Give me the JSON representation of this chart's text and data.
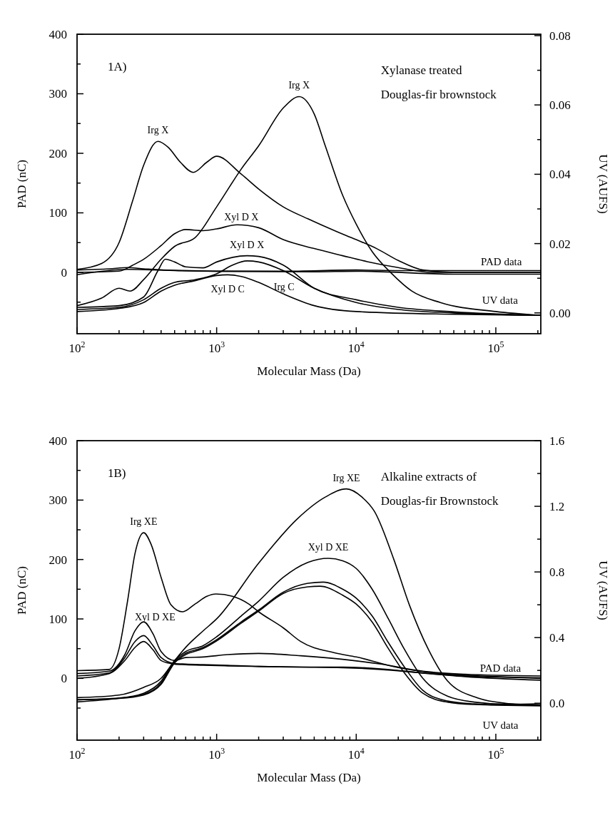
{
  "chart_data": [
    {
      "type": "line",
      "xlabel": "Molecular Mass (Da)",
      "ylabel": "PAD (nC)",
      "y2label": "UV (AUFS)",
      "log": "x",
      "xlim": [
        100,
        210000
      ],
      "ylim": [
        -103,
        400
      ],
      "y2lim": [
        -0.006,
        0.0804
      ],
      "xticks": [
        {
          "value": 100,
          "label": "10$^{2}$"
        },
        {
          "value": 200,
          "label": null
        },
        {
          "value": 300,
          "label": null
        },
        {
          "value": 400,
          "label": null
        },
        {
          "value": 500,
          "label": null
        },
        {
          "value": 600,
          "label": null
        },
        {
          "value": 700,
          "label": null
        },
        {
          "value": 800,
          "label": null
        },
        {
          "value": 900,
          "label": null
        },
        {
          "value": 1000,
          "label": "10$^{3}$"
        },
        {
          "value": 2000,
          "label": null
        },
        {
          "value": 3000,
          "label": null
        },
        {
          "value": 4000,
          "label": null
        },
        {
          "value": 5000,
          "label": null
        },
        {
          "value": 6000,
          "label": null
        },
        {
          "value": 7000,
          "label": null
        },
        {
          "value": 8000,
          "label": null
        },
        {
          "value": 9000,
          "label": null
        },
        {
          "value": 10000,
          "label": "10$^{4}$"
        },
        {
          "value": 20000,
          "label": null
        },
        {
          "value": 30000,
          "label": null
        },
        {
          "value": 40000,
          "label": null
        },
        {
          "value": 50000,
          "label": null
        },
        {
          "value": 60000,
          "label": null
        },
        {
          "value": 70000,
          "label": null
        },
        {
          "value": 80000,
          "label": null
        },
        {
          "value": 90000,
          "label": null
        },
        {
          "value": 100000,
          "label": "10$^{5}$"
        },
        {
          "value": 200000,
          "label": null
        }
      ],
      "yticks": [
        {
          "value": -50,
          "label": null
        },
        0,
        {
          "value": 50,
          "label": null
        },
        100,
        {
          "value": 150,
          "label": null
        },
        200,
        {
          "value": 250,
          "label": null
        },
        300,
        {
          "value": 350,
          "label": null
        },
        400
      ],
      "y2ticks": [
        {
          "value": 0,
          "label": "0.00"
        },
        {
          "value": 0.01,
          "label": null
        },
        0.02,
        {
          "value": 0.03,
          "label": null
        },
        0.04,
        {
          "value": 0.05,
          "label": null
        },
        0.06,
        {
          "value": 0.07,
          "label": null
        },
        0.08
      ],
      "series": [
        {
          "name": "Irg X",
          "color": "#000000",
          "x": [
            100,
            150,
            200,
            250,
            300,
            380,
            450,
            550,
            680,
            850,
            1000,
            1500,
            2000,
            3000,
            4500,
            7000,
            10000,
            14000,
            20000,
            30000,
            50000,
            210000
          ],
          "values": [
            5,
            15,
            50,
            120,
            180,
            220,
            210,
            185,
            168,
            185,
            195,
            165,
            140,
            110,
            90,
            70,
            55,
            40,
            20,
            4,
            0,
            0
          ]
        },
        {
          "name": "Xyl D X",
          "color": "#000000",
          "x": [
            100,
            200,
            250,
            300,
            400,
            500,
            600,
            800,
            1000,
            1400,
            2000,
            3000,
            5000,
            8000,
            12000,
            20000,
            35000,
            210000
          ],
          "values": [
            0,
            2,
            12,
            22,
            45,
            65,
            72,
            70,
            73,
            80,
            75,
            55,
            40,
            28,
            18,
            8,
            0,
            0
          ]
        },
        {
          "color": "#000000",
          "x": [
            100,
            170,
            230,
            300,
            500,
            1000,
            3000,
            10000,
            20000,
            50000,
            210000
          ],
          "values": [
            4,
            6,
            8,
            6,
            3,
            2,
            2,
            4,
            3,
            3,
            3
          ]
        },
        {
          "color": "#000000",
          "x": [
            100,
            230,
            400,
            1000,
            5000,
            10000,
            50000,
            210000
          ],
          "values": [
            -4,
            5,
            4,
            2,
            1,
            2,
            -3,
            -3
          ]
        },
        {
          "name": "Irg X",
          "color": "#000000",
          "axis": "y2",
          "x": [
            100,
            150,
            200,
            240,
            300,
            400,
            500,
            700,
            1000,
            1500,
            2000,
            3000,
            3900,
            5000,
            6000,
            8000,
            10000,
            13000,
            18000,
            25000,
            40000,
            100000,
            210000
          ],
          "values": [
            0.0021,
            0.0043,
            0.0071,
            0.0063,
            0.0096,
            0.0155,
            0.0192,
            0.0217,
            0.0306,
            0.0415,
            0.0482,
            0.0591,
            0.0624,
            0.0574,
            0.0482,
            0.0339,
            0.0256,
            0.0177,
            0.0113,
            0.0063,
            0.003,
            0.0004,
            -0.0007
          ]
        },
        {
          "name": "Xyl D X",
          "color": "#000000",
          "axis": "y2",
          "x": [
            100,
            200,
            300,
            380,
            430,
            500,
            600,
            800,
            1000,
            1650,
            2000,
            3000,
            5000,
            10000,
            20000,
            50000,
            210000
          ],
          "values": [
            0.0016,
            0.0021,
            0.0046,
            0.0122,
            0.0155,
            0.0147,
            0.0133,
            0.013,
            0.0147,
            0.0165,
            0.0163,
            0.0138,
            0.0071,
            0.0038,
            0.0016,
            0.0003,
            -0.0007
          ]
        },
        {
          "name": "Irg C",
          "color": "#000000",
          "axis": "y2",
          "x": [
            100,
            200,
            300,
            400,
            500,
            700,
            1000,
            1300,
            1650,
            2000,
            3000,
            5000,
            10000,
            20000,
            50000,
            210000
          ],
          "values": [
            0.001,
            0.0016,
            0.0038,
            0.0071,
            0.0088,
            0.0096,
            0.0113,
            0.0138,
            0.015,
            0.0147,
            0.0122,
            0.0071,
            0.003,
            0.001,
            0,
            -0.0007
          ]
        },
        {
          "name": "Xyl D C",
          "color": "#000000",
          "axis": "y2",
          "x": [
            100,
            200,
            300,
            400,
            500,
            700,
            1000,
            1200,
            1500,
            2000,
            3000,
            5000,
            10000,
            50000,
            210000
          ],
          "values": [
            0.0004,
            0.0013,
            0.003,
            0.0063,
            0.008,
            0.0093,
            0.0108,
            0.011,
            0.0105,
            0.0088,
            0.0055,
            0.0021,
            0.0004,
            -0.0004,
            -0.0007
          ]
        }
      ],
      "annotations": [
        "1A)",
        "Xylanase treated",
        "Douglas-fir brownstock",
        "PAD data",
        "UV data"
      ]
    },
    {
      "type": "line",
      "xlabel": "Molecular Mass (Da)",
      "ylabel": "PAD (nC)",
      "y2label": "UV (AUFS)",
      "log": "x",
      "xlim": [
        100,
        210000
      ],
      "ylim": [
        -104,
        400
      ],
      "y2lim": [
        -0.225,
        1.6
      ],
      "xticks": [
        {
          "value": 100,
          "label": "10$^{2}$"
        },
        {
          "value": 200,
          "label": null
        },
        {
          "value": 300,
          "label": null
        },
        {
          "value": 400,
          "label": null
        },
        {
          "value": 500,
          "label": null
        },
        {
          "value": 600,
          "label": null
        },
        {
          "value": 700,
          "label": null
        },
        {
          "value": 800,
          "label": null
        },
        {
          "value": 900,
          "label": null
        },
        {
          "value": 1000,
          "label": "10$^{3}$"
        },
        {
          "value": 2000,
          "label": null
        },
        {
          "value": 3000,
          "label": null
        },
        {
          "value": 4000,
          "label": null
        },
        {
          "value": 5000,
          "label": null
        },
        {
          "value": 6000,
          "label": null
        },
        {
          "value": 7000,
          "label": null
        },
        {
          "value": 8000,
          "label": null
        },
        {
          "value": 9000,
          "label": null
        },
        {
          "value": 10000,
          "label": "10$^{4}$"
        },
        {
          "value": 20000,
          "label": null
        },
        {
          "value": 30000,
          "label": null
        },
        {
          "value": 40000,
          "label": null
        },
        {
          "value": 50000,
          "label": null
        },
        {
          "value": 60000,
          "label": null
        },
        {
          "value": 70000,
          "label": null
        },
        {
          "value": 80000,
          "label": null
        },
        {
          "value": 90000,
          "label": null
        },
        {
          "value": 100000,
          "label": "10$^{5}$"
        },
        {
          "value": 200000,
          "label": null
        }
      ],
      "yticks": [
        {
          "value": -50,
          "label": null
        },
        0,
        {
          "value": 50,
          "label": null
        },
        100,
        {
          "value": 150,
          "label": null
        },
        200,
        {
          "value": 250,
          "label": null
        },
        300,
        {
          "value": 350,
          "label": null
        },
        400
      ],
      "y2ticks": [
        {
          "value": 0,
          "label": "0.0"
        },
        {
          "value": 0.2,
          "label": null
        },
        0.4,
        {
          "value": 0.6,
          "label": null
        },
        0.8,
        {
          "value": 1.0,
          "label": null
        },
        1.2,
        {
          "value": 1.4,
          "label": null
        },
        1.6
      ],
      "series": [
        {
          "name": "Irg XE",
          "color": "#000000",
          "x": [
            100,
            170,
            200,
            230,
            260,
            300,
            340,
            400,
            470,
            570,
            700,
            850,
            990,
            1300,
            1700,
            2000,
            3000,
            4000,
            7000,
            10000,
            20000,
            40000,
            100000,
            210000
          ],
          "values": [
            13,
            15,
            50,
            130,
            210,
            245,
            225,
            170,
            124,
            112,
            125,
            138,
            142,
            138,
            125,
            112,
            85,
            62,
            43,
            36,
            18,
            8,
            3,
            0
          ]
        },
        {
          "name": "Xyl D XE",
          "color": "#000000",
          "x": [
            100,
            170,
            220,
            260,
            300,
            350,
            400,
            500,
            600,
            800,
            1200,
            2000,
            4000,
            8000,
            15000,
            30000,
            60000,
            210000
          ],
          "values": [
            8,
            12,
            40,
            80,
            95,
            75,
            45,
            30,
            35,
            36,
            40,
            42,
            38,
            32,
            24,
            12,
            7,
            4
          ]
        },
        {
          "color": "#000000",
          "x": [
            100,
            170,
            220,
            260,
            300,
            350,
            400,
            500,
            600,
            800,
            1200,
            2000,
            4000,
            8000,
            15000,
            30000,
            60000,
            210000
          ],
          "values": [
            4,
            9,
            35,
            62,
            72,
            55,
            35,
            25,
            24,
            23,
            22,
            20,
            19,
            19,
            16,
            9,
            3,
            -3
          ]
        },
        {
          "color": "#000000",
          "x": [
            100,
            170,
            220,
            260,
            300,
            350,
            400,
            500,
            600,
            800,
            1200,
            2000,
            4000,
            8000,
            15000,
            30000,
            60000,
            210000
          ],
          "values": [
            0,
            8,
            30,
            52,
            62,
            48,
            30,
            24,
            23,
            22,
            21,
            20,
            19,
            18,
            15,
            9,
            4,
            1
          ]
        },
        {
          "name": "Irg XE",
          "color": "#000000",
          "axis": "y2",
          "x": [
            100,
            200,
            300,
            400,
            500,
            610,
            800,
            1000,
            2000,
            3800,
            6000,
            8500,
            11000,
            13500,
            18600,
            24000,
            33000,
            45000,
            74000,
            117000,
            210000
          ],
          "values": [
            0.034,
            0.05,
            0.097,
            0.152,
            0.26,
            0.347,
            0.441,
            0.514,
            0.854,
            1.125,
            1.256,
            1.306,
            1.256,
            1.169,
            0.876,
            0.6,
            0.325,
            0.137,
            0.032,
            0,
            -0.011
          ]
        },
        {
          "name": "Xyl D XE",
          "color": "#000000",
          "axis": "y2",
          "x": [
            100,
            200,
            300,
            400,
            500,
            600,
            800,
            1000,
            1500,
            2000,
            3000,
            4500,
            6300,
            8000,
            10000,
            13000,
            17000,
            22000,
            30000,
            45000,
            70000,
            120000,
            210000
          ],
          "values": [
            0.021,
            0.032,
            0.061,
            0.134,
            0.26,
            0.315,
            0.351,
            0.405,
            0.532,
            0.622,
            0.767,
            0.858,
            0.883,
            0.868,
            0.821,
            0.695,
            0.514,
            0.333,
            0.152,
            0.043,
            0.007,
            -0.006,
            -0.002
          ]
        },
        {
          "color": "#000000",
          "axis": "y2",
          "x": [
            100,
            200,
            300,
            400,
            500,
            600,
            800,
            1000,
            1500,
            2000,
            3000,
            4500,
            5800,
            8000,
            10000,
            13000,
            17000,
            22000,
            30000,
            45000,
            70000,
            120000,
            210000
          ],
          "values": [
            0.008,
            0.03,
            0.054,
            0.123,
            0.253,
            0.304,
            0.34,
            0.387,
            0.496,
            0.568,
            0.677,
            0.731,
            0.738,
            0.695,
            0.64,
            0.532,
            0.369,
            0.224,
            0.079,
            0.014,
            -0.004,
            -0.011,
            -0.011
          ]
        },
        {
          "color": "#000000",
          "axis": "y2",
          "x": [
            100,
            200,
            300,
            400,
            500,
            600,
            800,
            1000,
            1500,
            2000,
            3000,
            4500,
            5500,
            8000,
            10000,
            13000,
            17000,
            22000,
            30000,
            45000,
            70000,
            120000,
            210000
          ],
          "values": [
            0.021,
            0.029,
            0.05,
            0.115,
            0.246,
            0.296,
            0.333,
            0.38,
            0.488,
            0.561,
            0.669,
            0.709,
            0.713,
            0.658,
            0.604,
            0.495,
            0.333,
            0.188,
            0.061,
            0.007,
            -0.008,
            -0.013,
            -0.016
          ]
        }
      ],
      "annotations": [
        "1B)",
        "Alkaline extracts of",
        "Douglas-fir Brownstock",
        "PAD data",
        "UV data"
      ]
    }
  ]
}
